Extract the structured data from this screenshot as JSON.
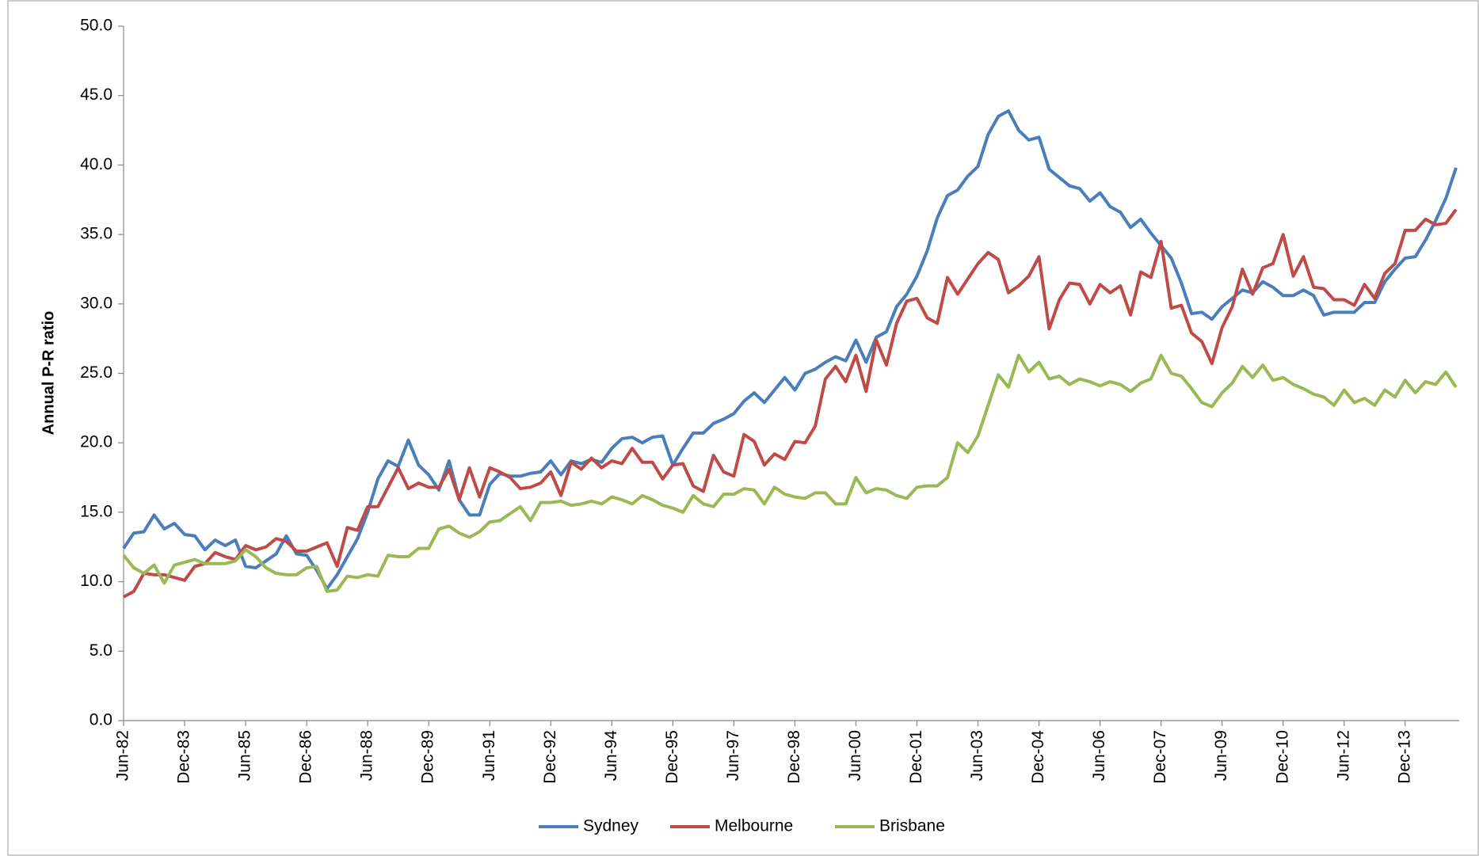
{
  "chart_data": {
    "type": "line",
    "y_label": "Annual P-R ratio",
    "categories": [
      "Jun-82",
      null,
      null,
      null,
      null,
      null,
      "Dec-83",
      null,
      null,
      null,
      null,
      null,
      "Jun-85",
      null,
      null,
      null,
      null,
      null,
      "Dec-86",
      null,
      null,
      null,
      null,
      null,
      "Jun-88",
      null,
      null,
      null,
      null,
      null,
      "Dec-89",
      null,
      null,
      null,
      null,
      null,
      "Jun-91",
      null,
      null,
      null,
      null,
      null,
      "Dec-92",
      null,
      null,
      null,
      null,
      null,
      "Jun-94",
      null,
      null,
      null,
      null,
      null,
      "Dec-95",
      null,
      null,
      null,
      null,
      null,
      "Jun-97",
      null,
      null,
      null,
      null,
      null,
      "Dec-98",
      null,
      null,
      null,
      null,
      null,
      "Jun-00",
      null,
      null,
      null,
      null,
      null,
      "Dec-01",
      null,
      null,
      null,
      null,
      null,
      "Jun-03",
      null,
      null,
      null,
      null,
      null,
      "Dec-04",
      null,
      null,
      null,
      null,
      null,
      "Jun-06",
      null,
      null,
      null,
      null,
      null,
      "Dec-07",
      null,
      null,
      null,
      null,
      null,
      "Jun-09",
      null,
      null,
      null,
      null,
      null,
      "Dec-10",
      null,
      null,
      null,
      null,
      null,
      "Jun-12",
      null,
      null,
      null,
      null,
      null,
      "Dec-13",
      null,
      null,
      null,
      null,
      null
    ],
    "series": [
      {
        "name": "Sydney",
        "color": "#4a7ebb",
        "values": [
          12.4,
          13.5,
          13.6,
          14.8,
          13.8,
          14.2,
          13.4,
          13.3,
          12.3,
          13.0,
          12.6,
          13.0,
          11.1,
          11.0,
          11.5,
          12.0,
          13.3,
          12.0,
          11.9,
          10.8,
          9.5,
          10.5,
          11.8,
          13.1,
          15.0,
          17.4,
          18.7,
          18.3,
          20.2,
          18.4,
          17.7,
          16.6,
          18.7,
          15.9,
          14.8,
          14.8,
          17.0,
          17.8,
          17.6,
          17.6,
          17.8,
          17.9,
          18.7,
          17.7,
          18.7,
          18.5,
          18.8,
          18.6,
          19.6,
          20.3,
          20.4,
          20.0,
          20.4,
          20.5,
          18.4,
          19.6,
          20.7,
          20.7,
          21.4,
          21.7,
          22.1,
          23.0,
          23.6,
          22.9,
          23.8,
          24.7,
          23.8,
          25.0,
          25.3,
          25.8,
          26.2,
          25.9,
          27.4,
          25.8,
          27.6,
          28.0,
          29.8,
          30.7,
          32.0,
          33.8,
          36.2,
          37.8,
          38.2,
          39.2,
          39.9,
          42.2,
          43.5,
          43.9,
          42.5,
          41.8,
          42.0,
          39.7,
          39.1,
          38.5,
          38.3,
          37.4,
          38.0,
          37.0,
          36.6,
          35.5,
          36.1,
          35.1,
          34.2,
          33.3,
          31.5,
          29.3,
          29.4,
          28.9,
          29.8,
          30.4,
          31.0,
          30.8,
          31.6,
          31.2,
          30.6,
          30.6,
          31.0,
          30.6,
          29.2,
          29.4,
          29.4,
          29.4,
          30.1,
          30.1,
          31.6,
          32.5,
          33.3,
          33.4,
          34.6,
          36.0,
          37.6,
          39.8
        ]
      },
      {
        "name": "Melbourne",
        "color": "#be4b48",
        "values": [
          8.9,
          9.3,
          10.6,
          10.5,
          10.5,
          10.3,
          10.1,
          11.1,
          11.3,
          12.1,
          11.8,
          11.6,
          12.6,
          12.3,
          12.5,
          13.1,
          12.9,
          12.2,
          12.2,
          12.5,
          12.8,
          11.1,
          13.9,
          13.7,
          15.4,
          15.4,
          16.8,
          18.2,
          16.7,
          17.1,
          16.8,
          16.8,
          18.1,
          15.9,
          18.2,
          16.1,
          18.2,
          17.9,
          17.5,
          16.7,
          16.8,
          17.1,
          17.9,
          16.2,
          18.6,
          18.1,
          18.9,
          18.2,
          18.7,
          18.5,
          19.6,
          18.6,
          18.6,
          17.4,
          18.4,
          18.5,
          16.9,
          16.5,
          19.1,
          17.9,
          17.6,
          20.6,
          20.1,
          18.4,
          19.2,
          18.8,
          20.1,
          20.0,
          21.2,
          24.6,
          25.5,
          24.4,
          26.3,
          23.7,
          27.4,
          25.6,
          28.6,
          30.2,
          30.4,
          29.0,
          28.6,
          31.9,
          30.7,
          31.8,
          32.9,
          33.7,
          33.2,
          30.8,
          31.3,
          32.0,
          33.4,
          28.2,
          30.3,
          31.5,
          31.4,
          30.0,
          31.4,
          30.8,
          31.3,
          29.2,
          32.3,
          31.9,
          34.5,
          29.7,
          29.9,
          27.9,
          27.3,
          25.7,
          28.3,
          29.8,
          32.5,
          30.7,
          32.6,
          32.9,
          35.0,
          32.0,
          33.4,
          31.2,
          31.1,
          30.3,
          30.3,
          29.9,
          31.4,
          30.4,
          32.2,
          32.9,
          35.3,
          35.3,
          36.1,
          35.7,
          35.8,
          36.8
        ]
      },
      {
        "name": "Brisbane",
        "color": "#98b954",
        "values": [
          11.9,
          11.0,
          10.6,
          11.2,
          9.9,
          11.2,
          11.4,
          11.6,
          11.3,
          11.3,
          11.3,
          11.5,
          12.3,
          11.8,
          11.0,
          10.6,
          10.5,
          10.5,
          11.0,
          11.1,
          9.3,
          9.4,
          10.4,
          10.3,
          10.5,
          10.4,
          11.9,
          11.8,
          11.8,
          12.4,
          12.4,
          13.8,
          14.0,
          13.5,
          13.2,
          13.6,
          14.3,
          14.4,
          14.9,
          15.4,
          14.4,
          15.7,
          15.7,
          15.8,
          15.5,
          15.6,
          15.8,
          15.6,
          16.1,
          15.9,
          15.6,
          16.2,
          15.9,
          15.5,
          15.3,
          15.0,
          16.2,
          15.6,
          15.4,
          16.3,
          16.3,
          16.7,
          16.6,
          15.6,
          16.8,
          16.3,
          16.1,
          16.0,
          16.4,
          16.4,
          15.6,
          15.6,
          17.5,
          16.4,
          16.7,
          16.6,
          16.2,
          16.0,
          16.8,
          16.9,
          16.9,
          17.5,
          20.0,
          19.3,
          20.5,
          22.7,
          24.9,
          24.0,
          26.3,
          25.1,
          25.8,
          24.6,
          24.8,
          24.2,
          24.6,
          24.4,
          24.1,
          24.4,
          24.2,
          23.7,
          24.3,
          24.6,
          26.3,
          25.0,
          24.8,
          23.9,
          22.9,
          22.6,
          23.6,
          24.3,
          25.5,
          24.7,
          25.6,
          24.5,
          24.7,
          24.2,
          23.9,
          23.5,
          23.3,
          22.7,
          23.8,
          22.9,
          23.2,
          22.7,
          23.8,
          23.3,
          24.5,
          23.6,
          24.4,
          24.2,
          25.1,
          24.0
        ]
      }
    ],
    "ylim": [
      0,
      50
    ],
    "yticks": [
      {
        "value": 0,
        "label": "0.0"
      },
      {
        "value": 5,
        "label": "5.0"
      },
      {
        "value": 10,
        "label": "10.0"
      },
      {
        "value": 15,
        "label": "15.0"
      },
      {
        "value": 20,
        "label": "20.0"
      },
      {
        "value": 25,
        "label": "25.0"
      },
      {
        "value": 30,
        "label": "30.0"
      },
      {
        "value": 35,
        "label": "35.0"
      },
      {
        "value": 40,
        "label": "40.0"
      },
      {
        "value": 45,
        "label": "45.0"
      },
      {
        "value": 50,
        "label": "50.0"
      }
    ],
    "grid": false,
    "legend": "bottom"
  }
}
